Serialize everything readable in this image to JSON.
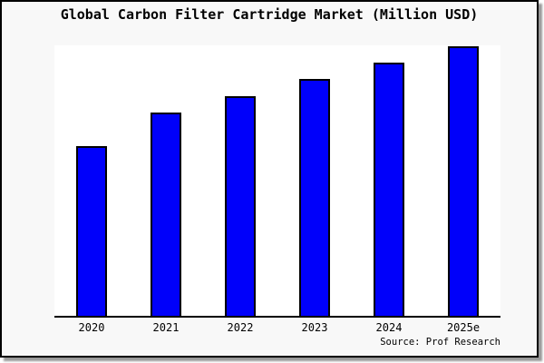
{
  "window": {
    "background": "#f8f8f8",
    "border_color": "#000000",
    "shadow_color": "#999999"
  },
  "chart_data": {
    "type": "bar",
    "title": "Global Carbon Filter Cartridge Market (Million USD)",
    "categories": [
      "2020",
      "2021",
      "2022",
      "2023",
      "2024",
      "2025e"
    ],
    "values": [
      62.7,
      75.0,
      81.3,
      87.7,
      93.7,
      99.7
    ],
    "xlabel": "",
    "ylabel": "",
    "ylim": [
      0,
      100
    ],
    "y_axis_ticks_visible": false,
    "grid": false,
    "legend": false,
    "bar_color": "#0000fa",
    "bar_border_color": "#000000",
    "plot_background": "#ffffff",
    "axis_line_color": "#000000"
  },
  "source_note": "Source: Prof Research"
}
